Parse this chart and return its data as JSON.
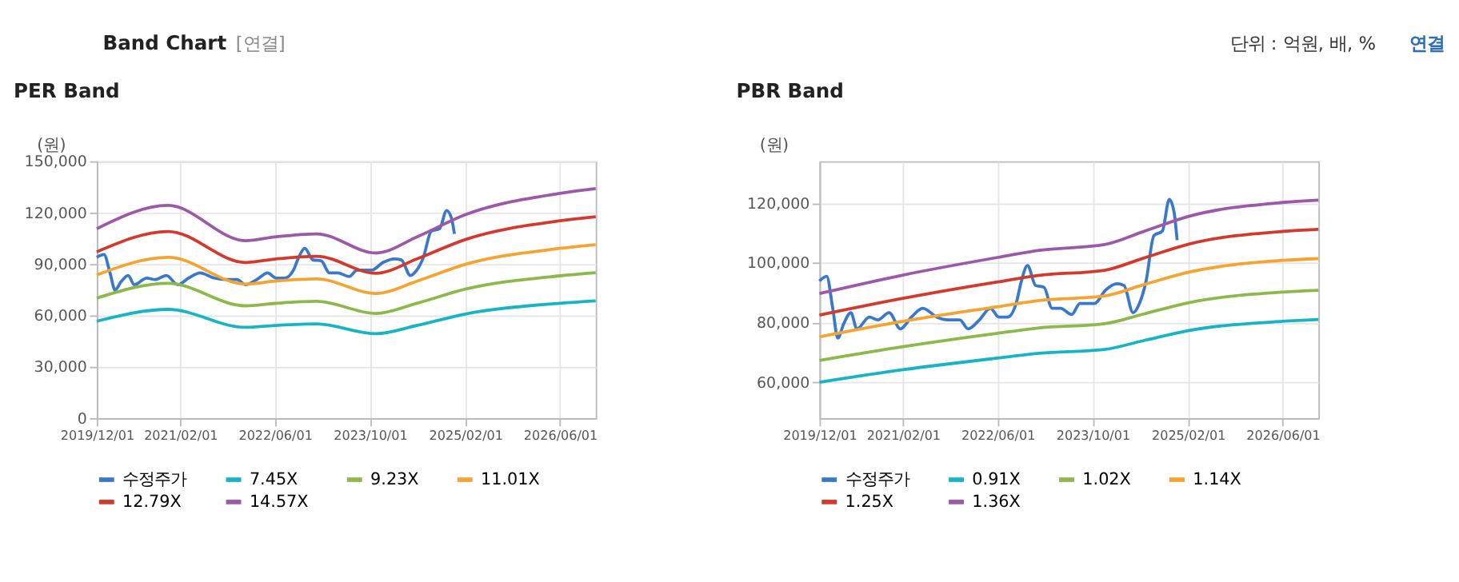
{
  "chart_data": [
    {
      "type": "other",
      "title": "Band Chart",
      "annotations": [
        "[연결]",
        "단위 : 억원, 배, %",
        "연결"
      ]
    },
    {
      "type": "line",
      "title": "PER Band",
      "ylabel": "(원)",
      "grid": true,
      "legend": "bottom",
      "xlim": [
        "2019-12-01",
        "2026-12-01"
      ],
      "xticks": [
        {
          "value": "2019-12-01",
          "label": "2019/12/01"
        },
        {
          "value": "2021-02-01",
          "label": "2021/02/01"
        },
        {
          "value": "2022-06-01",
          "label": "2022/06/01"
        },
        {
          "value": "2023-10-01",
          "label": "2023/10/01"
        },
        {
          "value": "2025-02-01",
          "label": "2025/02/01"
        },
        {
          "value": "2026-06-01",
          "label": "2026/06/01"
        }
      ],
      "ylim": [
        0,
        150000
      ],
      "yticks": [
        0,
        {
          "value": 30000,
          "label": "30,000"
        },
        {
          "value": 60000,
          "label": "60,000"
        },
        {
          "value": 90000,
          "label": "90,000"
        },
        {
          "value": 120000,
          "label": "120,000"
        },
        {
          "value": 150000,
          "label": "150,000"
        }
      ],
      "series": [
        {
          "name": "수정주가",
          "color": "#3a78c9",
          "x": [
            "2019-12-01",
            "2020-01-07",
            "2020-02-07",
            "2020-03-04",
            "2020-04-04",
            "2020-05-10",
            "2020-06-10",
            "2020-08-13",
            "2020-09-25",
            "2020-11-22",
            "2021-01-19",
            "2021-03-16",
            "2021-05-13",
            "2021-07-25",
            "2021-09-22",
            "2021-11-19",
            "2022-01-01",
            "2022-02-28",
            "2022-04-25",
            "2022-06-07",
            "2022-07-22",
            "2022-09-04",
            "2022-10-01",
            "2022-11-01",
            "2022-12-13",
            "2023-01-25",
            "2023-03-07",
            "2023-04-19",
            "2023-06-16",
            "2023-07-28",
            "2023-10-10",
            "2023-12-07",
            "2024-02-03",
            "2024-03-10",
            "2024-04-25",
            "2024-05-28",
            "2024-07-01",
            "2024-08-10",
            "2024-09-22",
            "2024-10-28",
            "2024-11-22",
            "2024-12-07"
          ],
          "values": [
            93900,
            95500,
            84800,
            74800,
            79700,
            83300,
            77900,
            81800,
            80900,
            83300,
            77900,
            81800,
            84800,
            81800,
            80900,
            80900,
            77900,
            80900,
            84800,
            81800,
            81800,
            86400,
            93900,
            99100,
            92400,
            91800,
            84800,
            84800,
            82700,
            86400,
            86400,
            90900,
            93000,
            92400,
            83300,
            86400,
            93900,
            109100,
            110600,
            121200,
            116700,
            107600
          ]
        },
        {
          "name": "7.45X",
          "color": "#17b5c4",
          "x": [
            "2019-12-01",
            "2020-12-01",
            "2022-01-01",
            "2022-06-01",
            "2023-01-01",
            "2023-11-01",
            "2024-06-01",
            "2025-02-01",
            "2026-06-01",
            "2026-12-01"
          ],
          "values": [
            56600,
            63500,
            53000,
            54100,
            55000,
            49300,
            54200,
            60800,
            67100,
            68500
          ]
        },
        {
          "name": "9.23X",
          "color": "#8db84a",
          "x": [
            "2019-12-01",
            "2020-12-01",
            "2022-01-01",
            "2022-06-01",
            "2023-01-01",
            "2023-11-01",
            "2024-06-01",
            "2025-02-01",
            "2026-06-01",
            "2026-12-01"
          ],
          "values": [
            70100,
            78700,
            65600,
            67000,
            68200,
            61100,
            67200,
            75300,
            83100,
            84900
          ]
        },
        {
          "name": "11.01X",
          "color": "#f5a431",
          "x": [
            "2019-12-01",
            "2020-12-01",
            "2022-01-01",
            "2022-06-01",
            "2023-01-01",
            "2023-11-01",
            "2024-06-01",
            "2025-02-01",
            "2026-06-01",
            "2026-12-01"
          ],
          "values": [
            83600,
            93900,
            78300,
            80000,
            81300,
            72800,
            80100,
            89800,
            99100,
            101300
          ]
        },
        {
          "name": "12.79X",
          "color": "#d33a2e",
          "x": [
            "2019-12-01",
            "2020-12-01",
            "2022-01-01",
            "2022-06-01",
            "2023-01-01",
            "2023-11-01",
            "2024-06-01",
            "2025-02-01",
            "2026-06-01",
            "2026-12-01"
          ],
          "values": [
            97100,
            109000,
            90900,
            92900,
            94500,
            84600,
            93100,
            104300,
            115200,
            117600
          ]
        },
        {
          "name": "14.57X",
          "color": "#9b59a8",
          "x": [
            "2019-12-01",
            "2020-12-01",
            "2022-01-01",
            "2022-06-01",
            "2023-01-01",
            "2023-11-01",
            "2024-06-01",
            "2025-02-01",
            "2026-06-01",
            "2026-12-01"
          ],
          "values": [
            110600,
            124200,
            103600,
            105800,
            107600,
            96400,
            106000,
            118800,
            131200,
            134000
          ]
        }
      ]
    },
    {
      "type": "line",
      "title": "PBR Band",
      "ylabel": "(원)",
      "grid": true,
      "legend": "bottom",
      "xlim": [
        "2019-12-01",
        "2026-12-01"
      ],
      "xticks": [
        {
          "value": "2019-12-01",
          "label": "2019/12/01"
        },
        {
          "value": "2021-02-01",
          "label": "2021/02/01"
        },
        {
          "value": "2022-06-01",
          "label": "2022/06/01"
        },
        {
          "value": "2023-10-01",
          "label": "2023/10/01"
        },
        {
          "value": "2025-02-01",
          "label": "2025/02/01"
        },
        {
          "value": "2026-06-01",
          "label": "2026/06/01"
        }
      ],
      "ylim": [
        48000,
        134000
      ],
      "yticks": [
        {
          "value": 60000,
          "label": "60,000"
        },
        {
          "value": 80000,
          "label": "80,000"
        },
        {
          "value": 100000,
          "label": "100,000"
        },
        {
          "value": 120000,
          "label": "120,000"
        }
      ],
      "series": [
        {
          "name": "수정주가",
          "color": "#3a78c9",
          "x": [
            "2019-12-01",
            "2020-01-07",
            "2020-02-07",
            "2020-03-04",
            "2020-04-04",
            "2020-05-10",
            "2020-06-10",
            "2020-08-13",
            "2020-09-25",
            "2020-11-22",
            "2021-01-19",
            "2021-03-16",
            "2021-05-13",
            "2021-07-25",
            "2021-09-22",
            "2021-11-19",
            "2022-01-01",
            "2022-02-28",
            "2022-04-25",
            "2022-06-07",
            "2022-07-22",
            "2022-09-04",
            "2022-10-01",
            "2022-11-01",
            "2022-12-13",
            "2023-01-25",
            "2023-03-07",
            "2023-04-19",
            "2023-06-16",
            "2023-07-28",
            "2023-10-10",
            "2023-12-07",
            "2024-02-03",
            "2024-03-10",
            "2024-04-25",
            "2024-05-28",
            "2024-07-01",
            "2024-08-10",
            "2024-09-22",
            "2024-10-28",
            "2024-11-22",
            "2024-12-07"
          ],
          "values": [
            93900,
            95500,
            84800,
            74800,
            79700,
            83300,
            77900,
            81800,
            80900,
            83300,
            77900,
            81800,
            84800,
            81800,
            80900,
            80900,
            77900,
            80900,
            84800,
            81800,
            81800,
            86400,
            93900,
            99100,
            92400,
            91800,
            84800,
            84800,
            82700,
            86400,
            86400,
            90900,
            93000,
            92400,
            83300,
            86400,
            93900,
            109100,
            110600,
            121200,
            116700,
            107600
          ]
        },
        {
          "name": "0.91X",
          "color": "#17b5c4",
          "x": [
            "2019-12-01",
            "2021-02-01",
            "2022-06-01",
            "2023-01-01",
            "2023-12-01",
            "2024-06-15",
            "2025-02-01",
            "2026-06-01",
            "2026-12-01"
          ],
          "values": [
            60000,
            64200,
            68100,
            69700,
            71000,
            73900,
            77300,
            80400,
            81000
          ]
        },
        {
          "name": "1.02X",
          "color": "#8db84a",
          "x": [
            "2019-12-01",
            "2021-02-01",
            "2022-06-01",
            "2023-01-01",
            "2023-12-01",
            "2024-06-15",
            "2025-02-01",
            "2026-06-01",
            "2026-12-01"
          ],
          "values": [
            67300,
            71900,
            76400,
            78200,
            79600,
            82800,
            86600,
            90200,
            90800
          ]
        },
        {
          "name": "1.14X",
          "color": "#f5a431",
          "x": [
            "2019-12-01",
            "2021-02-01",
            "2022-06-01",
            "2023-01-01",
            "2023-12-01",
            "2024-06-15",
            "2025-02-01",
            "2026-06-01",
            "2026-12-01"
          ],
          "values": [
            75200,
            80400,
            85300,
            87400,
            88900,
            92600,
            96800,
            100800,
            101400
          ]
        },
        {
          "name": "1.25X",
          "color": "#d33a2e",
          "x": [
            "2019-12-01",
            "2021-02-01",
            "2022-06-01",
            "2023-01-01",
            "2023-12-01",
            "2024-06-15",
            "2025-02-01",
            "2026-06-01",
            "2026-12-01"
          ],
          "values": [
            82500,
            88100,
            93600,
            95800,
            97500,
            101500,
            106200,
            110500,
            111200
          ]
        },
        {
          "name": "1.36X",
          "color": "#9b59a8",
          "x": [
            "2019-12-01",
            "2021-02-01",
            "2022-06-01",
            "2023-01-01",
            "2023-12-01",
            "2024-06-15",
            "2025-02-01",
            "2026-06-01",
            "2026-12-01"
          ],
          "values": [
            89700,
            95900,
            101800,
            104200,
            106100,
            110400,
            115500,
            120200,
            121000
          ]
        }
      ]
    }
  ]
}
